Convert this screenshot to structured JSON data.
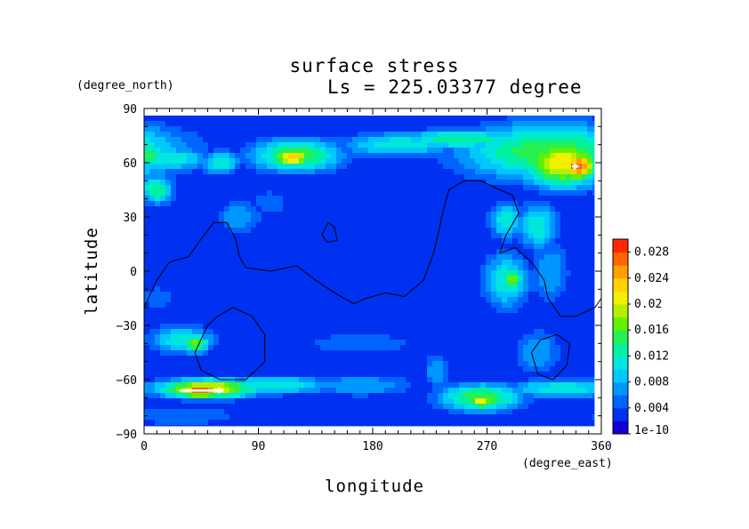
{
  "chart_data": {
    "type": "heatmap",
    "title": "surface stress",
    "subtitle": "Ls = 225.03377 degree",
    "xlabel": "longitude",
    "ylabel": "latitude",
    "x_units": "(degree_east)",
    "y_units": "(degree_north)",
    "xlim": [
      0,
      360
    ],
    "ylim": [
      -90,
      90
    ],
    "x_ticks": [
      "0",
      "90",
      "180",
      "270",
      "360"
    ],
    "y_ticks": [
      "90",
      "60",
      "30",
      "0",
      "−30",
      "−60",
      "−90"
    ],
    "grid": false,
    "colorbar": {
      "placement": "right",
      "min": 0,
      "max": 0.03,
      "tick_labels": [
        "1e-10",
        "0.004",
        "0.008",
        "0.012",
        "0.016",
        "0.02",
        "0.024",
        "0.028"
      ],
      "tick_values": [
        0,
        0.004,
        0.008,
        0.012,
        0.016,
        0.02,
        0.024,
        0.028
      ],
      "colors": [
        "#1400d2",
        "#0030f0",
        "#0064ff",
        "#0096ff",
        "#00c8ff",
        "#00e6dc",
        "#00f0a0",
        "#28f050",
        "#64f000",
        "#b4f000",
        "#f0f000",
        "#ffd200",
        "#ffa000",
        "#ff6400",
        "#ff2800"
      ]
    },
    "background_value": 0.002,
    "stress_features": [
      {
        "lon": 20,
        "lat": 62,
        "slon": 25,
        "slat": 5,
        "value": 0.012
      },
      {
        "lon": 4,
        "lat": 64,
        "slon": 8,
        "slat": 6,
        "value": 0.016
      },
      {
        "lon": 10,
        "lat": 45,
        "slon": 10,
        "slat": 6,
        "value": 0.014
      },
      {
        "lon": 60,
        "lat": 60,
        "slon": 12,
        "slat": 5,
        "value": 0.012
      },
      {
        "lon": 120,
        "lat": 64,
        "slon": 28,
        "slat": 7,
        "value": 0.016
      },
      {
        "lon": 117,
        "lat": 63,
        "slon": 12,
        "slat": 4,
        "value": 0.024
      },
      {
        "lon": 200,
        "lat": 70,
        "slon": 35,
        "slat": 5,
        "value": 0.012
      },
      {
        "lon": 250,
        "lat": 73,
        "slon": 40,
        "slat": 4,
        "value": 0.014
      },
      {
        "lon": 320,
        "lat": 66,
        "slon": 55,
        "slat": 12,
        "value": 0.016
      },
      {
        "lon": 330,
        "lat": 60,
        "slon": 25,
        "slat": 10,
        "value": 0.022
      },
      {
        "lon": 342,
        "lat": 58,
        "slon": 10,
        "slat": 6,
        "value": 0.028
      },
      {
        "lon": 75,
        "lat": 30,
        "slon": 14,
        "slat": 7,
        "value": 0.008
      },
      {
        "lon": 100,
        "lat": 38,
        "slon": 12,
        "slat": 6,
        "value": 0.006
      },
      {
        "lon": 285,
        "lat": 28,
        "slon": 10,
        "slat": 8,
        "value": 0.012
      },
      {
        "lon": 310,
        "lat": 25,
        "slon": 12,
        "slat": 10,
        "value": 0.012
      },
      {
        "lon": 285,
        "lat": -5,
        "slon": 14,
        "slat": 12,
        "value": 0.012
      },
      {
        "lon": 290,
        "lat": -5,
        "slon": 6,
        "slat": 5,
        "value": 0.018
      },
      {
        "lon": 320,
        "lat": 0,
        "slon": 12,
        "slat": 14,
        "value": 0.008
      },
      {
        "lon": 10,
        "lat": -15,
        "slon": 12,
        "slat": 6,
        "value": 0.006
      },
      {
        "lon": 30,
        "lat": -38,
        "slon": 20,
        "slat": 6,
        "value": 0.012
      },
      {
        "lon": 40,
        "lat": -40,
        "slon": 8,
        "slat": 4,
        "value": 0.018
      },
      {
        "lon": 170,
        "lat": -40,
        "slon": 40,
        "slat": 5,
        "value": 0.006
      },
      {
        "lon": 310,
        "lat": -45,
        "slon": 15,
        "slat": 10,
        "value": 0.008
      },
      {
        "lon": 50,
        "lat": -65,
        "slon": 30,
        "slat": 4,
        "value": 0.022
      },
      {
        "lon": 45,
        "lat": -66,
        "slon": 15,
        "slat": 3,
        "value": 0.028
      },
      {
        "lon": 100,
        "lat": -63,
        "slon": 40,
        "slat": 4,
        "value": 0.012
      },
      {
        "lon": 170,
        "lat": -63,
        "slon": 35,
        "slat": 5,
        "value": 0.008
      },
      {
        "lon": 265,
        "lat": -70,
        "slon": 25,
        "slat": 6,
        "value": 0.016
      },
      {
        "lon": 265,
        "lat": -72,
        "slon": 8,
        "slat": 3,
        "value": 0.022
      },
      {
        "lon": 330,
        "lat": -65,
        "slon": 35,
        "slat": 4,
        "value": 0.012
      },
      {
        "lon": 230,
        "lat": -55,
        "slon": 8,
        "slat": 8,
        "value": 0.008
      },
      {
        "lon": 30,
        "lat": -80,
        "slon": 40,
        "slat": 5,
        "value": 0.006
      }
    ],
    "topography_contours": [
      [
        [
          0,
          -20
        ],
        [
          10,
          -5
        ],
        [
          20,
          5
        ],
        [
          35,
          8
        ],
        [
          45,
          18
        ],
        [
          55,
          27
        ],
        [
          65,
          27
        ],
        [
          72,
          18
        ],
        [
          75,
          8
        ],
        [
          80,
          2
        ],
        [
          100,
          0
        ],
        [
          120,
          3
        ],
        [
          135,
          -5
        ],
        [
          150,
          -12
        ],
        [
          165,
          -18
        ],
        [
          175,
          -15
        ],
        [
          190,
          -12
        ],
        [
          205,
          -14
        ],
        [
          220,
          -5
        ],
        [
          228,
          10
        ],
        [
          232,
          22
        ],
        [
          235,
          32
        ],
        [
          240,
          45
        ],
        [
          252,
          50
        ],
        [
          265,
          50
        ],
        [
          280,
          45
        ],
        [
          290,
          42
        ],
        [
          295,
          32
        ],
        [
          285,
          20
        ],
        [
          280,
          10
        ],
        [
          292,
          13
        ],
        [
          305,
          5
        ],
        [
          315,
          -5
        ],
        [
          318,
          -15
        ],
        [
          328,
          -25
        ],
        [
          340,
          -25
        ],
        [
          355,
          -20
        ],
        [
          360,
          -15
        ]
      ],
      [
        [
          140,
          20
        ],
        [
          145,
          27
        ],
        [
          150,
          24
        ],
        [
          152,
          17
        ],
        [
          144,
          16
        ],
        [
          140,
          20
        ]
      ],
      [
        [
          50,
          -30
        ],
        [
          40,
          -45
        ],
        [
          45,
          -55
        ],
        [
          60,
          -60
        ],
        [
          80,
          -60
        ],
        [
          95,
          -50
        ],
        [
          95,
          -35
        ],
        [
          85,
          -25
        ],
        [
          70,
          -20
        ],
        [
          58,
          -25
        ],
        [
          50,
          -30
        ]
      ],
      [
        [
          305,
          -45
        ],
        [
          310,
          -57
        ],
        [
          322,
          -60
        ],
        [
          333,
          -52
        ],
        [
          335,
          -40
        ],
        [
          325,
          -35
        ],
        [
          312,
          -38
        ],
        [
          305,
          -45
        ]
      ]
    ],
    "wind_arrows": [
      {
        "lon1": 28,
        "lat1": -66,
        "lon2": 63,
        "lat2": -66
      },
      {
        "lon1": 337,
        "lat1": 58,
        "lon2": 343,
        "lat2": 58
      }
    ]
  }
}
